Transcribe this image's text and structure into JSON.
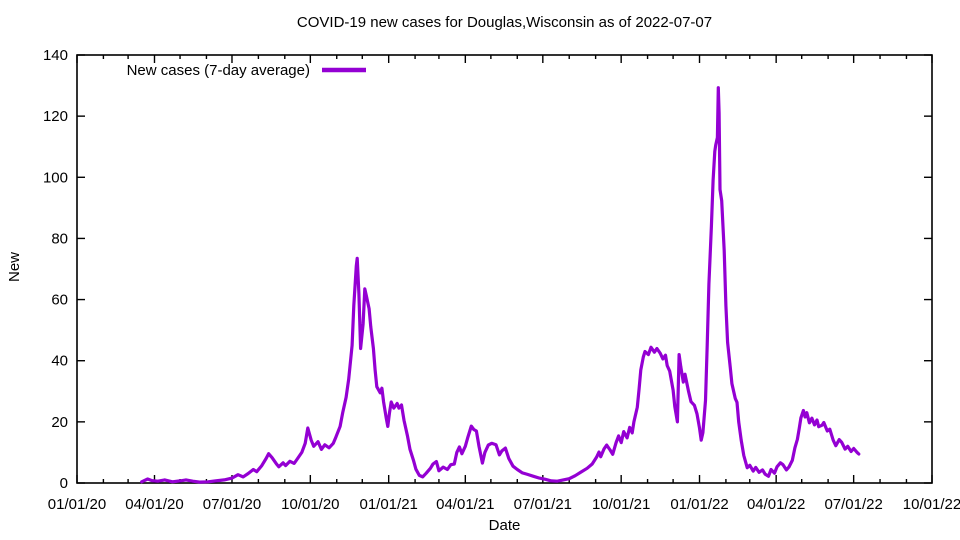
{
  "chart_data": {
    "type": "line",
    "title": "COVID-19 new cases for Douglas,Wisconsin as of 2022-07-07",
    "xlabel": "Date",
    "ylabel": "New",
    "ylim": [
      0,
      140
    ],
    "grid": false,
    "legend_position": "top-left-inside",
    "axis_color": "#000000",
    "background_color": "#ffffff",
    "y_ticks": [
      0,
      20,
      40,
      60,
      80,
      100,
      120,
      140
    ],
    "x_ticks": [
      {
        "date": "2020-01-01",
        "label": "01/01/20"
      },
      {
        "date": "2020-04-01",
        "label": "04/01/20"
      },
      {
        "date": "2020-07-01",
        "label": "07/01/20"
      },
      {
        "date": "2020-10-01",
        "label": "10/01/20"
      },
      {
        "date": "2021-01-01",
        "label": "01/01/21"
      },
      {
        "date": "2021-04-01",
        "label": "04/01/21"
      },
      {
        "date": "2021-07-01",
        "label": "07/01/21"
      },
      {
        "date": "2021-10-01",
        "label": "10/01/21"
      },
      {
        "date": "2022-01-01",
        "label": "01/01/22"
      },
      {
        "date": "2022-04-01",
        "label": "04/01/22"
      },
      {
        "date": "2022-07-01",
        "label": "07/01/22"
      },
      {
        "date": "2022-10-01",
        "label": "10/01/22"
      }
    ],
    "legend": [
      {
        "label": "New cases (7-day average)",
        "color": "#9400d3"
      }
    ],
    "series": [
      {
        "name": "New cases (7-day average)",
        "color": "#9400d3",
        "points": [
          [
            "2020-03-17",
            0.4
          ],
          [
            "2020-03-24",
            1.3
          ],
          [
            "2020-03-29",
            0.8
          ],
          [
            "2020-04-05",
            0.6
          ],
          [
            "2020-04-13",
            1.0
          ],
          [
            "2020-04-22",
            0.4
          ],
          [
            "2020-05-01",
            0.7
          ],
          [
            "2020-05-08",
            1.0
          ],
          [
            "2020-05-16",
            0.6
          ],
          [
            "2020-05-24",
            0.3
          ],
          [
            "2020-06-03",
            0.4
          ],
          [
            "2020-06-12",
            0.7
          ],
          [
            "2020-06-22",
            1.0
          ],
          [
            "2020-07-01",
            1.6
          ],
          [
            "2020-07-08",
            2.7
          ],
          [
            "2020-07-14",
            2.0
          ],
          [
            "2020-07-20",
            3.1
          ],
          [
            "2020-07-26",
            4.4
          ],
          [
            "2020-07-30",
            3.7
          ],
          [
            "2020-08-05",
            5.7
          ],
          [
            "2020-08-10",
            8.0
          ],
          [
            "2020-08-13",
            9.6
          ],
          [
            "2020-08-17",
            8.3
          ],
          [
            "2020-08-22",
            6.3
          ],
          [
            "2020-08-25",
            5.3
          ],
          [
            "2020-08-30",
            6.6
          ],
          [
            "2020-09-02",
            5.7
          ],
          [
            "2020-09-07",
            7.1
          ],
          [
            "2020-09-12",
            6.4
          ],
          [
            "2020-09-16",
            8.0
          ],
          [
            "2020-09-21",
            10.0
          ],
          [
            "2020-09-25",
            13.0
          ],
          [
            "2020-09-28",
            18.0
          ],
          [
            "2020-10-02",
            14.0
          ],
          [
            "2020-10-05",
            12.0
          ],
          [
            "2020-10-10",
            13.5
          ],
          [
            "2020-10-14",
            11.0
          ],
          [
            "2020-10-18",
            12.5
          ],
          [
            "2020-10-23",
            11.5
          ],
          [
            "2020-10-28",
            13.0
          ],
          [
            "2020-10-31",
            15.0
          ],
          [
            "2020-11-05",
            18.5
          ],
          [
            "2020-11-08",
            23.0
          ],
          [
            "2020-11-12",
            28.0
          ],
          [
            "2020-11-15",
            34.0
          ],
          [
            "2020-11-19",
            45.0
          ],
          [
            "2020-11-21",
            58.0
          ],
          [
            "2020-11-24",
            71.0
          ],
          [
            "2020-11-25",
            73.5
          ],
          [
            "2020-11-27",
            62.0
          ],
          [
            "2020-11-29",
            44.0
          ],
          [
            "2020-12-02",
            52.0
          ],
          [
            "2020-12-04",
            63.5
          ],
          [
            "2020-12-06",
            61.0
          ],
          [
            "2020-12-09",
            57.0
          ],
          [
            "2020-12-11",
            51.0
          ],
          [
            "2020-12-14",
            44.0
          ],
          [
            "2020-12-16",
            37.0
          ],
          [
            "2020-12-18",
            31.5
          ],
          [
            "2020-12-22",
            29.5
          ],
          [
            "2020-12-24",
            31.0
          ],
          [
            "2020-12-26",
            26.5
          ],
          [
            "2020-12-29",
            21.5
          ],
          [
            "2020-12-31",
            18.5
          ],
          [
            "2021-01-02",
            23.0
          ],
          [
            "2021-01-04",
            26.5
          ],
          [
            "2021-01-07",
            24.5
          ],
          [
            "2021-01-11",
            26.0
          ],
          [
            "2021-01-13",
            24.5
          ],
          [
            "2021-01-16",
            25.5
          ],
          [
            "2021-01-19",
            20.5
          ],
          [
            "2021-01-23",
            15.5
          ],
          [
            "2021-01-26",
            11.0
          ],
          [
            "2021-01-30",
            7.5
          ],
          [
            "2021-02-02",
            4.5
          ],
          [
            "2021-02-06",
            2.5
          ],
          [
            "2021-02-10",
            2.0
          ],
          [
            "2021-02-14",
            3.2
          ],
          [
            "2021-02-19",
            4.8
          ],
          [
            "2021-02-22",
            6.2
          ],
          [
            "2021-02-26",
            7.0
          ],
          [
            "2021-03-01",
            4.0
          ],
          [
            "2021-03-06",
            5.2
          ],
          [
            "2021-03-11",
            4.4
          ],
          [
            "2021-03-15",
            6.0
          ],
          [
            "2021-03-19",
            6.2
          ],
          [
            "2021-03-22",
            10.0
          ],
          [
            "2021-03-25",
            11.8
          ],
          [
            "2021-03-28",
            9.6
          ],
          [
            "2021-04-01",
            12.0
          ],
          [
            "2021-04-04",
            15.0
          ],
          [
            "2021-04-08",
            18.6
          ],
          [
            "2021-04-11",
            17.5
          ],
          [
            "2021-04-14",
            17.0
          ],
          [
            "2021-04-17",
            12.0
          ],
          [
            "2021-04-21",
            6.5
          ],
          [
            "2021-04-24",
            10.0
          ],
          [
            "2021-04-28",
            12.4
          ],
          [
            "2021-05-02",
            13.0
          ],
          [
            "2021-05-07",
            12.5
          ],
          [
            "2021-05-11",
            9.2
          ],
          [
            "2021-05-14",
            10.5
          ],
          [
            "2021-05-18",
            11.4
          ],
          [
            "2021-05-22",
            8.0
          ],
          [
            "2021-05-27",
            5.5
          ],
          [
            "2021-06-01",
            4.4
          ],
          [
            "2021-06-07",
            3.3
          ],
          [
            "2021-06-13",
            2.8
          ],
          [
            "2021-06-20",
            2.2
          ],
          [
            "2021-06-27",
            1.6
          ],
          [
            "2021-07-04",
            1.2
          ],
          [
            "2021-07-11",
            0.7
          ],
          [
            "2021-07-18",
            0.6
          ],
          [
            "2021-07-25",
            1.0
          ],
          [
            "2021-08-01",
            1.4
          ],
          [
            "2021-08-08",
            2.4
          ],
          [
            "2021-08-15",
            3.6
          ],
          [
            "2021-08-22",
            4.8
          ],
          [
            "2021-08-28",
            6.2
          ],
          [
            "2021-09-02",
            8.4
          ],
          [
            "2021-09-05",
            10.1
          ],
          [
            "2021-09-07",
            8.6
          ],
          [
            "2021-09-11",
            11.2
          ],
          [
            "2021-09-14",
            12.4
          ],
          [
            "2021-09-18",
            10.8
          ],
          [
            "2021-09-21",
            9.4
          ],
          [
            "2021-09-25",
            13.2
          ],
          [
            "2021-09-28",
            15.4
          ],
          [
            "2021-10-01",
            13.2
          ],
          [
            "2021-10-04",
            16.8
          ],
          [
            "2021-10-08",
            14.8
          ],
          [
            "2021-10-11",
            18.2
          ],
          [
            "2021-10-14",
            16.4
          ],
          [
            "2021-10-16",
            20.0
          ],
          [
            "2021-10-20",
            24.8
          ],
          [
            "2021-10-22",
            30.8
          ],
          [
            "2021-10-24",
            37.0
          ],
          [
            "2021-10-27",
            41.2
          ],
          [
            "2021-10-29",
            43.0
          ],
          [
            "2021-11-02",
            42.0
          ],
          [
            "2021-11-05",
            44.4
          ],
          [
            "2021-11-09",
            42.8
          ],
          [
            "2021-11-12",
            44.0
          ],
          [
            "2021-11-16",
            42.4
          ],
          [
            "2021-11-19",
            40.6
          ],
          [
            "2021-11-22",
            41.8
          ],
          [
            "2021-11-24",
            38.4
          ],
          [
            "2021-11-27",
            36.6
          ],
          [
            "2021-12-01",
            30.4
          ],
          [
            "2021-12-03",
            25.0
          ],
          [
            "2021-12-06",
            20.0
          ],
          [
            "2021-12-08",
            42.0
          ],
          [
            "2021-12-10",
            38.0
          ],
          [
            "2021-12-13",
            33.0
          ],
          [
            "2021-12-15",
            35.6
          ],
          [
            "2021-12-19",
            30.2
          ],
          [
            "2021-12-22",
            26.6
          ],
          [
            "2021-12-26",
            25.4
          ],
          [
            "2021-12-29",
            22.6
          ],
          [
            "2022-01-01",
            18.0
          ],
          [
            "2022-01-03",
            14.0
          ],
          [
            "2022-01-05",
            16.5
          ],
          [
            "2022-01-08",
            27.0
          ],
          [
            "2022-01-10",
            45.0
          ],
          [
            "2022-01-12",
            65.0
          ],
          [
            "2022-01-15",
            84.0
          ],
          [
            "2022-01-17",
            99.0
          ],
          [
            "2022-01-19",
            108.5
          ],
          [
            "2022-01-20",
            110.5
          ],
          [
            "2022-01-22",
            113.0
          ],
          [
            "2022-01-23",
            129.3
          ],
          [
            "2022-01-24",
            121.0
          ],
          [
            "2022-01-25",
            96.0
          ],
          [
            "2022-01-27",
            92.3
          ],
          [
            "2022-01-30",
            76.0
          ],
          [
            "2022-02-01",
            58.0
          ],
          [
            "2022-02-03",
            46.0
          ],
          [
            "2022-02-06",
            38.0
          ],
          [
            "2022-02-08",
            32.5
          ],
          [
            "2022-02-12",
            27.6
          ],
          [
            "2022-02-14",
            26.4
          ],
          [
            "2022-02-16",
            20.0
          ],
          [
            "2022-02-19",
            14.0
          ],
          [
            "2022-02-22",
            9.0
          ],
          [
            "2022-02-26",
            5.0
          ],
          [
            "2022-03-01",
            5.8
          ],
          [
            "2022-03-05",
            3.9
          ],
          [
            "2022-03-08",
            5.1
          ],
          [
            "2022-03-12",
            3.5
          ],
          [
            "2022-03-16",
            4.3
          ],
          [
            "2022-03-19",
            2.9
          ],
          [
            "2022-03-23",
            2.2
          ],
          [
            "2022-03-26",
            4.4
          ],
          [
            "2022-03-30",
            3.2
          ],
          [
            "2022-04-02",
            5.3
          ],
          [
            "2022-04-06",
            6.6
          ],
          [
            "2022-04-09",
            6.0
          ],
          [
            "2022-04-13",
            4.3
          ],
          [
            "2022-04-16",
            5.2
          ],
          [
            "2022-04-20",
            7.4
          ],
          [
            "2022-04-23",
            11.5
          ],
          [
            "2022-04-26",
            14.3
          ],
          [
            "2022-04-28",
            17.8
          ],
          [
            "2022-04-30",
            21.3
          ],
          [
            "2022-05-03",
            23.7
          ],
          [
            "2022-05-05",
            21.6
          ],
          [
            "2022-05-07",
            23.0
          ],
          [
            "2022-05-10",
            19.7
          ],
          [
            "2022-05-13",
            21.2
          ],
          [
            "2022-05-16",
            19.0
          ],
          [
            "2022-05-19",
            20.6
          ],
          [
            "2022-05-21",
            18.4
          ],
          [
            "2022-05-25",
            18.9
          ],
          [
            "2022-05-27",
            19.8
          ],
          [
            "2022-05-31",
            17.0
          ],
          [
            "2022-06-03",
            17.6
          ],
          [
            "2022-06-07",
            14.0
          ],
          [
            "2022-06-10",
            12.2
          ],
          [
            "2022-06-14",
            14.2
          ],
          [
            "2022-06-17",
            13.3
          ],
          [
            "2022-06-21",
            11.1
          ],
          [
            "2022-06-24",
            12.0
          ],
          [
            "2022-06-28",
            10.3
          ],
          [
            "2022-07-01",
            11.3
          ],
          [
            "2022-07-05",
            10.0
          ],
          [
            "2022-07-07",
            9.5
          ]
        ]
      }
    ]
  }
}
